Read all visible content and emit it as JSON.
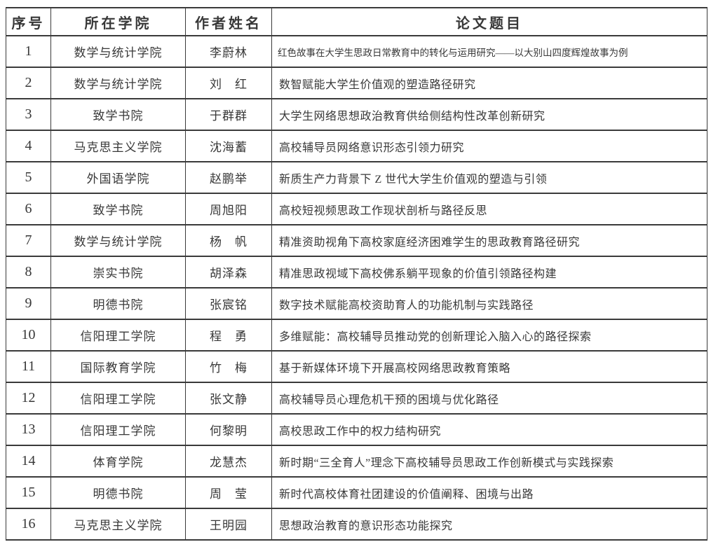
{
  "table": {
    "headers": [
      "序号",
      "所在学院",
      "作者姓名",
      "论文题目"
    ],
    "rows": [
      {
        "no": "1",
        "college": "数学与统计学院",
        "author": "李蔚林",
        "title": "红色故事在大学生思政日常教育中的转化与运用研究——以大别山四度辉煌故事为例"
      },
      {
        "no": "2",
        "college": "数学与统计学院",
        "author": "刘　红",
        "title": "数智赋能大学生价值观的塑造路径研究"
      },
      {
        "no": "3",
        "college": "致学书院",
        "author": "于群群",
        "title": "大学生网络思想政治教育供给侧结构性改革创新研究"
      },
      {
        "no": "4",
        "college": "马克思主义学院",
        "author": "沈海蓄",
        "title": "高校辅导员网络意识形态引领力研究"
      },
      {
        "no": "5",
        "college": "外国语学院",
        "author": "赵鹏举",
        "title": "新质生产力背景下 Z 世代大学生价值观的塑造与引领"
      },
      {
        "no": "6",
        "college": "致学书院",
        "author": "周旭阳",
        "title": "高校短视频思政工作现状剖析与路径反思"
      },
      {
        "no": "7",
        "college": "数学与统计学院",
        "author": "杨　帆",
        "title": "精准资助视角下高校家庭经济困难学生的思政教育路径研究"
      },
      {
        "no": "8",
        "college": "崇实书院",
        "author": "胡泽森",
        "title": "精准思政视域下高校佛系躺平现象的价值引领路径构建"
      },
      {
        "no": "9",
        "college": "明德书院",
        "author": "张宸铭",
        "title": "数字技术赋能高校资助育人的功能机制与实践路径"
      },
      {
        "no": "10",
        "college": "信阳理工学院",
        "author": "程　勇",
        "title": "多维赋能：高校辅导员推动党的创新理论入脑入心的路径探索"
      },
      {
        "no": "11",
        "college": "国际教育学院",
        "author": "竹　梅",
        "title": "基于新媒体环境下开展高校网络思政教育策略"
      },
      {
        "no": "12",
        "college": "信阳理工学院",
        "author": "张文静",
        "title": "高校辅导员心理危机干预的困境与优化路径"
      },
      {
        "no": "13",
        "college": "信阳理工学院",
        "author": "何黎明",
        "title": "高校思政工作中的权力结构研究"
      },
      {
        "no": "14",
        "college": "体育学院",
        "author": "龙慧杰",
        "title": "新时期“三全育人”理念下高校辅导员思政工作创新模式与实践探索"
      },
      {
        "no": "15",
        "college": "明德书院",
        "author": "周　莹",
        "title": "新时代高校体育社团建设的价值阐释、困境与出路"
      },
      {
        "no": "16",
        "college": "马克思主义学院",
        "author": "王明园",
        "title": "思想政治教育的意识形态功能探究"
      }
    ]
  },
  "colors": {
    "border": "#3a3a3a",
    "text": "#383838",
    "background": "#ffffff"
  }
}
